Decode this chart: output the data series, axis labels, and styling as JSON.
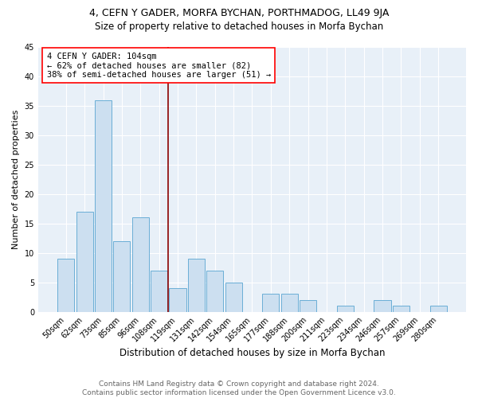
{
  "title1": "4, CEFN Y GADER, MORFA BYCHAN, PORTHMADOG, LL49 9JA",
  "title2": "Size of property relative to detached houses in Morfa Bychan",
  "xlabel": "Distribution of detached houses by size in Morfa Bychan",
  "ylabel": "Number of detached properties",
  "categories": [
    "50sqm",
    "62sqm",
    "73sqm",
    "85sqm",
    "96sqm",
    "108sqm",
    "119sqm",
    "131sqm",
    "142sqm",
    "154sqm",
    "165sqm",
    "177sqm",
    "188sqm",
    "200sqm",
    "211sqm",
    "223sqm",
    "234sqm",
    "246sqm",
    "257sqm",
    "269sqm",
    "280sqm"
  ],
  "values": [
    9,
    17,
    36,
    12,
    16,
    7,
    4,
    9,
    7,
    5,
    0,
    3,
    3,
    2,
    0,
    1,
    0,
    2,
    1,
    0,
    1
  ],
  "bar_color": "#ccdff0",
  "bar_edge_color": "#6aaed6",
  "vline_x": 5.5,
  "vline_color": "#8b0000",
  "annotation_text": "4 CEFN Y GADER: 104sqm\n← 62% of detached houses are smaller (82)\n38% of semi-detached houses are larger (51) →",
  "annotation_box_color": "white",
  "annotation_box_edge_color": "red",
  "ylim": [
    0,
    45
  ],
  "yticks": [
    0,
    5,
    10,
    15,
    20,
    25,
    30,
    35,
    40,
    45
  ],
  "background_color": "#e8f0f8",
  "grid_color": "white",
  "footer": "Contains HM Land Registry data © Crown copyright and database right 2024.\nContains public sector information licensed under the Open Government Licence v3.0.",
  "title1_fontsize": 9,
  "title2_fontsize": 8.5,
  "xlabel_fontsize": 8.5,
  "ylabel_fontsize": 8,
  "tick_fontsize": 7,
  "annotation_fontsize": 7.5,
  "footer_fontsize": 6.5
}
